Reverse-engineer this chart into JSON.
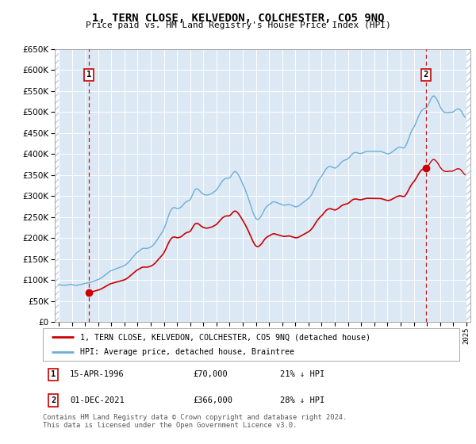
{
  "title": "1, TERN CLOSE, KELVEDON, COLCHESTER, CO5 9NQ",
  "subtitle": "Price paid vs. HM Land Registry's House Price Index (HPI)",
  "hpi_color": "#6baed6",
  "price_color": "#cc0000",
  "plot_bg": "#dce9f5",
  "ylim": [
    0,
    650000
  ],
  "yticks": [
    0,
    50000,
    100000,
    150000,
    200000,
    250000,
    300000,
    350000,
    400000,
    450000,
    500000,
    550000,
    600000,
    650000
  ],
  "xlim_start": 1993.7,
  "xlim_end": 2025.3,
  "transaction1_x": 1996.29,
  "transaction1_y": 70000,
  "transaction2_x": 2021.92,
  "transaction2_y": 366000,
  "legend_line1": "1, TERN CLOSE, KELVEDON, COLCHESTER, CO5 9NQ (detached house)",
  "legend_line2": "HPI: Average price, detached house, Braintree",
  "note1_label": "1",
  "note1_date": "15-APR-1996",
  "note1_price": "£70,000",
  "note1_hpi": "21% ↓ HPI",
  "note2_label": "2",
  "note2_date": "01-DEC-2021",
  "note2_price": "£366,000",
  "note2_hpi": "28% ↓ HPI",
  "copyright": "Contains HM Land Registry data © Crown copyright and database right 2024.\nThis data is licensed under the Open Government Licence v3.0.",
  "hpi_data": [
    [
      1994.0,
      89000
    ],
    [
      1994.083,
      88500
    ],
    [
      1994.167,
      88000
    ],
    [
      1994.25,
      87500
    ],
    [
      1994.333,
      87000
    ],
    [
      1994.417,
      87500
    ],
    [
      1994.5,
      87000
    ],
    [
      1994.583,
      87500
    ],
    [
      1994.667,
      88000
    ],
    [
      1994.75,
      88500
    ],
    [
      1994.833,
      89000
    ],
    [
      1994.917,
      89500
    ],
    [
      1995.0,
      89000
    ],
    [
      1995.083,
      88000
    ],
    [
      1995.167,
      87500
    ],
    [
      1995.25,
      87000
    ],
    [
      1995.333,
      87000
    ],
    [
      1995.417,
      87500
    ],
    [
      1995.5,
      88000
    ],
    [
      1995.583,
      88500
    ],
    [
      1995.667,
      89000
    ],
    [
      1995.75,
      89500
    ],
    [
      1995.833,
      90000
    ],
    [
      1995.917,
      91000
    ],
    [
      1996.0,
      91500
    ],
    [
      1996.083,
      92000
    ],
    [
      1996.167,
      92500
    ],
    [
      1996.25,
      93000
    ],
    [
      1996.333,
      93500
    ],
    [
      1996.417,
      94000
    ],
    [
      1996.5,
      95000
    ],
    [
      1996.583,
      96000
    ],
    [
      1996.667,
      97000
    ],
    [
      1996.75,
      98000
    ],
    [
      1996.833,
      99000
    ],
    [
      1996.917,
      100000
    ],
    [
      1997.0,
      101000
    ],
    [
      1997.083,
      102000
    ],
    [
      1997.167,
      103500
    ],
    [
      1997.25,
      105000
    ],
    [
      1997.333,
      107000
    ],
    [
      1997.417,
      109000
    ],
    [
      1997.5,
      111000
    ],
    [
      1997.583,
      113000
    ],
    [
      1997.667,
      115000
    ],
    [
      1997.75,
      117000
    ],
    [
      1997.833,
      119000
    ],
    [
      1997.917,
      121000
    ],
    [
      1998.0,
      122000
    ],
    [
      1998.083,
      123000
    ],
    [
      1998.167,
      124000
    ],
    [
      1998.25,
      125000
    ],
    [
      1998.333,
      126000
    ],
    [
      1998.417,
      127000
    ],
    [
      1998.5,
      128000
    ],
    [
      1998.583,
      129000
    ],
    [
      1998.667,
      130000
    ],
    [
      1998.75,
      131000
    ],
    [
      1998.833,
      132000
    ],
    [
      1998.917,
      133000
    ],
    [
      1999.0,
      134000
    ],
    [
      1999.083,
      136000
    ],
    [
      1999.167,
      138000
    ],
    [
      1999.25,
      140000
    ],
    [
      1999.333,
      143000
    ],
    [
      1999.417,
      146000
    ],
    [
      1999.5,
      149000
    ],
    [
      1999.583,
      152000
    ],
    [
      1999.667,
      155000
    ],
    [
      1999.75,
      158000
    ],
    [
      1999.833,
      161000
    ],
    [
      1999.917,
      164000
    ],
    [
      2000.0,
      166000
    ],
    [
      2000.083,
      168000
    ],
    [
      2000.167,
      170000
    ],
    [
      2000.25,
      172000
    ],
    [
      2000.333,
      174000
    ],
    [
      2000.417,
      175000
    ],
    [
      2000.5,
      175000
    ],
    [
      2000.583,
      175000
    ],
    [
      2000.667,
      175000
    ],
    [
      2000.75,
      175000
    ],
    [
      2000.833,
      176000
    ],
    [
      2000.917,
      177000
    ],
    [
      2001.0,
      178000
    ],
    [
      2001.083,
      180000
    ],
    [
      2001.167,
      182000
    ],
    [
      2001.25,
      185000
    ],
    [
      2001.333,
      188000
    ],
    [
      2001.417,
      192000
    ],
    [
      2001.5,
      196000
    ],
    [
      2001.583,
      200000
    ],
    [
      2001.667,
      204000
    ],
    [
      2001.75,
      208000
    ],
    [
      2001.833,
      212000
    ],
    [
      2001.917,
      216000
    ],
    [
      2002.0,
      221000
    ],
    [
      2002.083,
      228000
    ],
    [
      2002.167,
      235000
    ],
    [
      2002.25,
      243000
    ],
    [
      2002.333,
      251000
    ],
    [
      2002.417,
      258000
    ],
    [
      2002.5,
      264000
    ],
    [
      2002.583,
      268000
    ],
    [
      2002.667,
      271000
    ],
    [
      2002.75,
      272000
    ],
    [
      2002.833,
      272000
    ],
    [
      2002.917,
      271000
    ],
    [
      2003.0,
      270000
    ],
    [
      2003.083,
      270000
    ],
    [
      2003.167,
      271000
    ],
    [
      2003.25,
      272000
    ],
    [
      2003.333,
      274000
    ],
    [
      2003.417,
      277000
    ],
    [
      2003.5,
      280000
    ],
    [
      2003.583,
      283000
    ],
    [
      2003.667,
      285000
    ],
    [
      2003.75,
      287000
    ],
    [
      2003.833,
      288000
    ],
    [
      2003.917,
      289000
    ],
    [
      2004.0,
      291000
    ],
    [
      2004.083,
      296000
    ],
    [
      2004.167,
      302000
    ],
    [
      2004.25,
      308000
    ],
    [
      2004.333,
      313000
    ],
    [
      2004.417,
      316000
    ],
    [
      2004.5,
      317000
    ],
    [
      2004.583,
      316000
    ],
    [
      2004.667,
      314000
    ],
    [
      2004.75,
      311000
    ],
    [
      2004.833,
      308000
    ],
    [
      2004.917,
      306000
    ],
    [
      2005.0,
      304000
    ],
    [
      2005.083,
      303000
    ],
    [
      2005.167,
      302000
    ],
    [
      2005.25,
      302000
    ],
    [
      2005.333,
      302000
    ],
    [
      2005.417,
      303000
    ],
    [
      2005.5,
      304000
    ],
    [
      2005.583,
      305000
    ],
    [
      2005.667,
      306000
    ],
    [
      2005.75,
      308000
    ],
    [
      2005.833,
      310000
    ],
    [
      2005.917,
      312000
    ],
    [
      2006.0,
      314000
    ],
    [
      2006.083,
      318000
    ],
    [
      2006.167,
      322000
    ],
    [
      2006.25,
      326000
    ],
    [
      2006.333,
      330000
    ],
    [
      2006.417,
      334000
    ],
    [
      2006.5,
      337000
    ],
    [
      2006.583,
      339000
    ],
    [
      2006.667,
      341000
    ],
    [
      2006.75,
      342000
    ],
    [
      2006.833,
      342000
    ],
    [
      2006.917,
      342000
    ],
    [
      2007.0,
      343000
    ],
    [
      2007.083,
      346000
    ],
    [
      2007.167,
      350000
    ],
    [
      2007.25,
      354000
    ],
    [
      2007.333,
      357000
    ],
    [
      2007.417,
      358000
    ],
    [
      2007.5,
      357000
    ],
    [
      2007.583,
      354000
    ],
    [
      2007.667,
      350000
    ],
    [
      2007.75,
      345000
    ],
    [
      2007.833,
      340000
    ],
    [
      2007.917,
      334000
    ],
    [
      2008.0,
      328000
    ],
    [
      2008.083,
      322000
    ],
    [
      2008.167,
      316000
    ],
    [
      2008.25,
      309000
    ],
    [
      2008.333,
      302000
    ],
    [
      2008.417,
      295000
    ],
    [
      2008.5,
      287000
    ],
    [
      2008.583,
      279000
    ],
    [
      2008.667,
      271000
    ],
    [
      2008.75,
      263000
    ],
    [
      2008.833,
      256000
    ],
    [
      2008.917,
      250000
    ],
    [
      2009.0,
      246000
    ],
    [
      2009.083,
      244000
    ],
    [
      2009.167,
      244000
    ],
    [
      2009.25,
      246000
    ],
    [
      2009.333,
      249000
    ],
    [
      2009.417,
      253000
    ],
    [
      2009.5,
      258000
    ],
    [
      2009.583,
      263000
    ],
    [
      2009.667,
      268000
    ],
    [
      2009.75,
      272000
    ],
    [
      2009.833,
      275000
    ],
    [
      2009.917,
      277000
    ],
    [
      2010.0,
      279000
    ],
    [
      2010.083,
      281000
    ],
    [
      2010.167,
      283000
    ],
    [
      2010.25,
      285000
    ],
    [
      2010.333,
      286000
    ],
    [
      2010.417,
      286000
    ],
    [
      2010.5,
      285000
    ],
    [
      2010.583,
      284000
    ],
    [
      2010.667,
      283000
    ],
    [
      2010.75,
      282000
    ],
    [
      2010.833,
      281000
    ],
    [
      2010.917,
      280000
    ],
    [
      2011.0,
      279000
    ],
    [
      2011.083,
      278000
    ],
    [
      2011.167,
      278000
    ],
    [
      2011.25,
      278000
    ],
    [
      2011.333,
      279000
    ],
    [
      2011.417,
      279000
    ],
    [
      2011.5,
      280000
    ],
    [
      2011.583,
      279000
    ],
    [
      2011.667,
      278000
    ],
    [
      2011.75,
      277000
    ],
    [
      2011.833,
      276000
    ],
    [
      2011.917,
      275000
    ],
    [
      2012.0,
      274000
    ],
    [
      2012.083,
      274000
    ],
    [
      2012.167,
      275000
    ],
    [
      2012.25,
      276000
    ],
    [
      2012.333,
      278000
    ],
    [
      2012.417,
      280000
    ],
    [
      2012.5,
      282000
    ],
    [
      2012.583,
      284000
    ],
    [
      2012.667,
      286000
    ],
    [
      2012.75,
      288000
    ],
    [
      2012.833,
      290000
    ],
    [
      2012.917,
      292000
    ],
    [
      2013.0,
      294000
    ],
    [
      2013.083,
      297000
    ],
    [
      2013.167,
      300000
    ],
    [
      2013.25,
      304000
    ],
    [
      2013.333,
      309000
    ],
    [
      2013.417,
      314000
    ],
    [
      2013.5,
      320000
    ],
    [
      2013.583,
      326000
    ],
    [
      2013.667,
      331000
    ],
    [
      2013.75,
      336000
    ],
    [
      2013.833,
      340000
    ],
    [
      2013.917,
      344000
    ],
    [
      2014.0,
      347000
    ],
    [
      2014.083,
      351000
    ],
    [
      2014.167,
      356000
    ],
    [
      2014.25,
      360000
    ],
    [
      2014.333,
      364000
    ],
    [
      2014.417,
      367000
    ],
    [
      2014.5,
      369000
    ],
    [
      2014.583,
      370000
    ],
    [
      2014.667,
      370000
    ],
    [
      2014.75,
      369000
    ],
    [
      2014.833,
      368000
    ],
    [
      2014.917,
      367000
    ],
    [
      2015.0,
      366000
    ],
    [
      2015.083,
      367000
    ],
    [
      2015.167,
      369000
    ],
    [
      2015.25,
      371000
    ],
    [
      2015.333,
      374000
    ],
    [
      2015.417,
      377000
    ],
    [
      2015.5,
      380000
    ],
    [
      2015.583,
      382000
    ],
    [
      2015.667,
      384000
    ],
    [
      2015.75,
      385000
    ],
    [
      2015.833,
      386000
    ],
    [
      2015.917,
      387000
    ],
    [
      2016.0,
      388000
    ],
    [
      2016.083,
      391000
    ],
    [
      2016.167,
      394000
    ],
    [
      2016.25,
      397000
    ],
    [
      2016.333,
      400000
    ],
    [
      2016.417,
      402000
    ],
    [
      2016.5,
      403000
    ],
    [
      2016.583,
      403000
    ],
    [
      2016.667,
      403000
    ],
    [
      2016.75,
      402000
    ],
    [
      2016.833,
      401000
    ],
    [
      2016.917,
      401000
    ],
    [
      2017.0,
      401000
    ],
    [
      2017.083,
      402000
    ],
    [
      2017.167,
      403000
    ],
    [
      2017.25,
      404000
    ],
    [
      2017.333,
      405000
    ],
    [
      2017.417,
      406000
    ],
    [
      2017.5,
      406000
    ],
    [
      2017.583,
      406000
    ],
    [
      2017.667,
      406000
    ],
    [
      2017.75,
      406000
    ],
    [
      2017.833,
      406000
    ],
    [
      2017.917,
      406000
    ],
    [
      2018.0,
      406000
    ],
    [
      2018.083,
      406000
    ],
    [
      2018.167,
      406000
    ],
    [
      2018.25,
      406000
    ],
    [
      2018.333,
      406000
    ],
    [
      2018.417,
      406000
    ],
    [
      2018.5,
      406000
    ],
    [
      2018.583,
      405000
    ],
    [
      2018.667,
      404000
    ],
    [
      2018.75,
      403000
    ],
    [
      2018.833,
      402000
    ],
    [
      2018.917,
      401000
    ],
    [
      2019.0,
      400000
    ],
    [
      2019.083,
      400000
    ],
    [
      2019.167,
      401000
    ],
    [
      2019.25,
      402000
    ],
    [
      2019.333,
      404000
    ],
    [
      2019.417,
      406000
    ],
    [
      2019.5,
      408000
    ],
    [
      2019.583,
      410000
    ],
    [
      2019.667,
      412000
    ],
    [
      2019.75,
      414000
    ],
    [
      2019.833,
      415000
    ],
    [
      2019.917,
      416000
    ],
    [
      2020.0,
      416000
    ],
    [
      2020.083,
      415000
    ],
    [
      2020.167,
      414000
    ],
    [
      2020.25,
      414000
    ],
    [
      2020.333,
      416000
    ],
    [
      2020.417,
      421000
    ],
    [
      2020.5,
      427000
    ],
    [
      2020.583,
      434000
    ],
    [
      2020.667,
      441000
    ],
    [
      2020.75,
      448000
    ],
    [
      2020.833,
      454000
    ],
    [
      2020.917,
      459000
    ],
    [
      2021.0,
      463000
    ],
    [
      2021.083,
      468000
    ],
    [
      2021.167,
      474000
    ],
    [
      2021.25,
      480000
    ],
    [
      2021.333,
      487000
    ],
    [
      2021.417,
      493000
    ],
    [
      2021.5,
      498000
    ],
    [
      2021.583,
      502000
    ],
    [
      2021.667,
      505000
    ],
    [
      2021.75,
      507000
    ],
    [
      2021.833,
      508000
    ],
    [
      2021.917,
      509000
    ],
    [
      2022.0,
      511000
    ],
    [
      2022.083,
      516000
    ],
    [
      2022.167,
      521000
    ],
    [
      2022.25,
      527000
    ],
    [
      2022.333,
      532000
    ],
    [
      2022.417,
      536000
    ],
    [
      2022.5,
      538000
    ],
    [
      2022.583,
      537000
    ],
    [
      2022.667,
      534000
    ],
    [
      2022.75,
      530000
    ],
    [
      2022.833,
      525000
    ],
    [
      2022.917,
      519000
    ],
    [
      2023.0,
      513000
    ],
    [
      2023.083,
      508000
    ],
    [
      2023.167,
      504000
    ],
    [
      2023.25,
      501000
    ],
    [
      2023.333,
      499000
    ],
    [
      2023.417,
      498000
    ],
    [
      2023.5,
      498000
    ],
    [
      2023.583,
      498000
    ],
    [
      2023.667,
      499000
    ],
    [
      2023.75,
      499000
    ],
    [
      2023.833,
      499000
    ],
    [
      2023.917,
      499000
    ],
    [
      2024.0,
      500000
    ],
    [
      2024.083,
      502000
    ],
    [
      2024.167,
      504000
    ],
    [
      2024.25,
      506000
    ],
    [
      2024.333,
      507000
    ],
    [
      2024.417,
      507000
    ],
    [
      2024.5,
      506000
    ],
    [
      2024.583,
      503000
    ],
    [
      2024.667,
      499000
    ],
    [
      2024.75,
      494000
    ],
    [
      2024.833,
      490000
    ],
    [
      2024.917,
      487000
    ]
  ]
}
